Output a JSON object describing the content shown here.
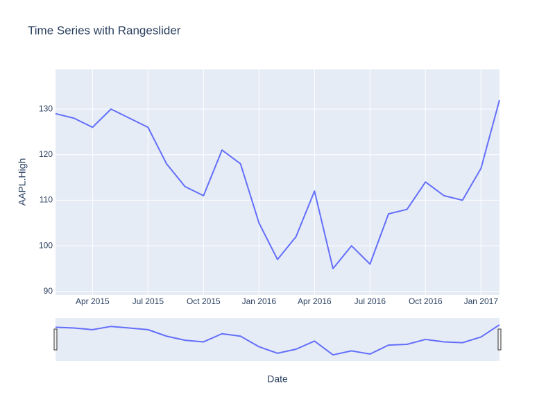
{
  "chart_data": {
    "type": "line",
    "title": "Time Series with Rangeslider",
    "xlabel": "Date",
    "ylabel": "AAPL.High",
    "x": [
      "2015-02",
      "2015-03",
      "2015-04",
      "2015-05",
      "2015-06",
      "2015-07",
      "2015-08",
      "2015-09",
      "2015-10",
      "2015-11",
      "2015-12",
      "2016-01",
      "2016-02",
      "2016-03",
      "2016-04",
      "2016-05",
      "2016-06",
      "2016-07",
      "2016-08",
      "2016-09",
      "2016-10",
      "2016-11",
      "2016-12",
      "2017-01",
      "2017-02"
    ],
    "series": [
      {
        "name": "AAPL.High",
        "color": "#636efa",
        "values": [
          129,
          128,
          126,
          130,
          128,
          126,
          118,
          113,
          111,
          121,
          118,
          105,
          97,
          102,
          112,
          95,
          100,
          96,
          107,
          108,
          114,
          111,
          110,
          117,
          132
        ]
      }
    ],
    "xlim": [
      "2015-02",
      "2017-02"
    ],
    "xticks": [
      {
        "value": "2015-04",
        "label": "Apr 2015"
      },
      {
        "value": "2015-07",
        "label": "Jul 2015"
      },
      {
        "value": "2015-10",
        "label": "Oct 2015"
      },
      {
        "value": "2016-01",
        "label": "Jan 2016"
      },
      {
        "value": "2016-04",
        "label": "Apr 2016"
      },
      {
        "value": "2016-07",
        "label": "Jul 2016"
      },
      {
        "value": "2016-10",
        "label": "Oct 2016"
      },
      {
        "value": "2017-01",
        "label": "Jan 2017"
      }
    ],
    "ylim": [
      89.2,
      138.7
    ],
    "yticks": [
      90,
      100,
      110,
      120,
      130
    ],
    "grid": true,
    "rangeslider": true
  }
}
